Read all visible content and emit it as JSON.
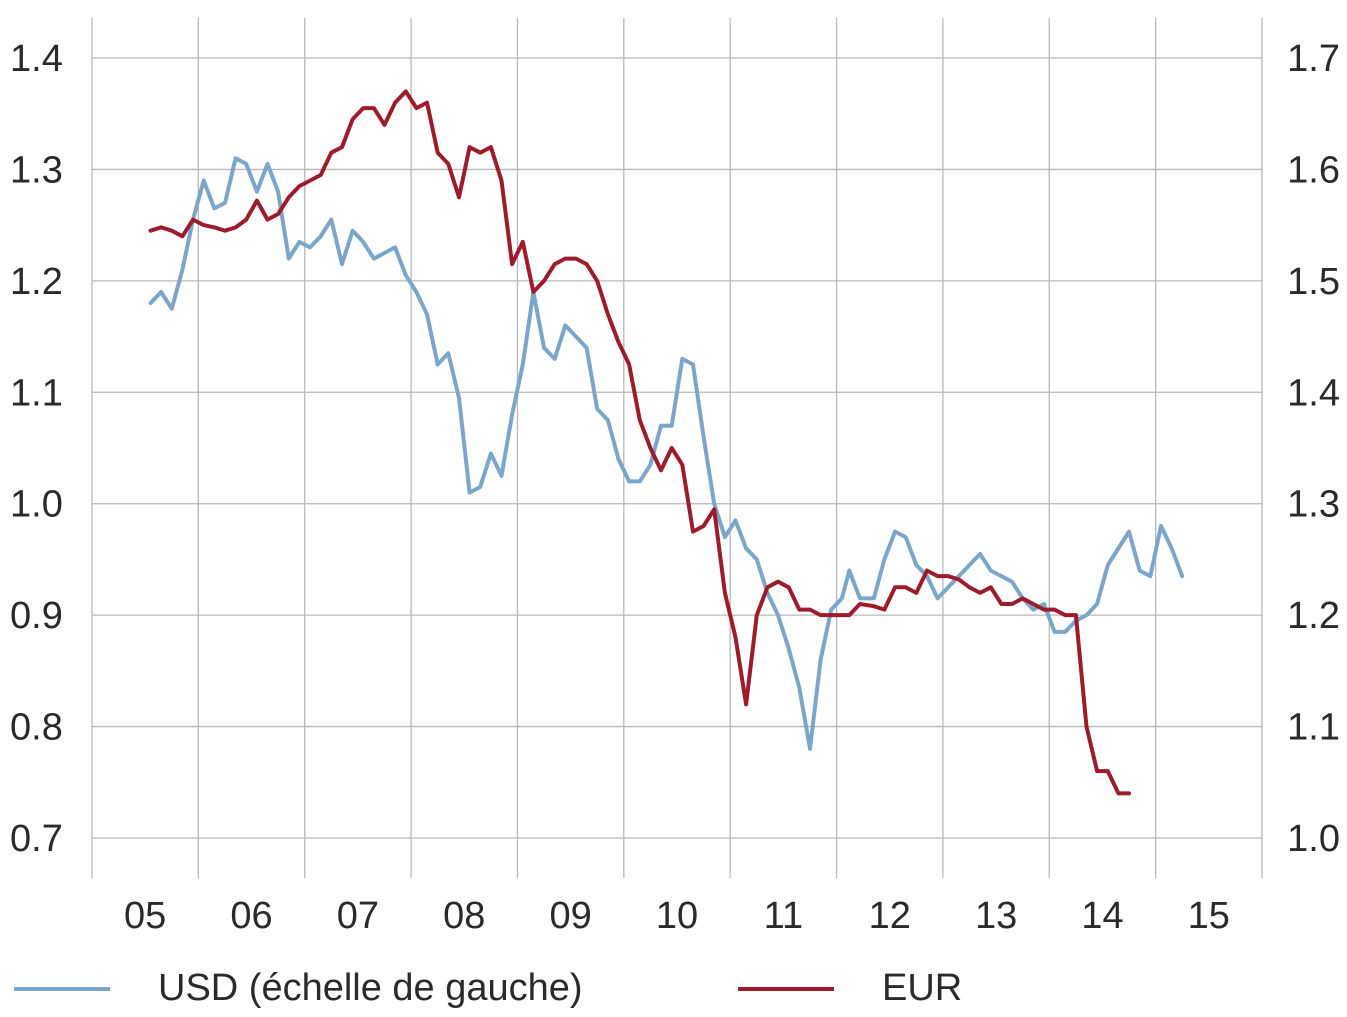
{
  "chart_data": {
    "type": "line",
    "x_tick_labels": [
      "05",
      "06",
      "07",
      "08",
      "09",
      "10",
      "11",
      "12",
      "13",
      "14",
      "15"
    ],
    "y_left": {
      "ticks": [
        "0.7",
        "0.8",
        "0.9",
        "1.0",
        "1.1",
        "1.2",
        "1.3",
        "1.4"
      ],
      "range": [
        0.7,
        1.4
      ]
    },
    "y_right": {
      "ticks": [
        "1.0",
        "1.1",
        "1.2",
        "1.3",
        "1.4",
        "1.5",
        "1.6",
        "1.7"
      ],
      "range": [
        1.0,
        1.7
      ]
    },
    "x_range": [
      2004.5,
      2015.5
    ],
    "grid": true,
    "legend_position": "bottom",
    "series": [
      {
        "name": "USD (échelle de gauche)",
        "axis": "left",
        "color": "#7ba6cb",
        "x": [
          2005.05,
          2005.15,
          2005.25,
          2005.35,
          2005.45,
          2005.55,
          2005.65,
          2005.75,
          2005.85,
          2005.95,
          2006.05,
          2006.15,
          2006.25,
          2006.35,
          2006.45,
          2006.55,
          2006.65,
          2006.75,
          2006.85,
          2006.95,
          2007.05,
          2007.15,
          2007.25,
          2007.35,
          2007.45,
          2007.55,
          2007.65,
          2007.75,
          2007.85,
          2007.95,
          2008.05,
          2008.15,
          2008.25,
          2008.35,
          2008.45,
          2008.55,
          2008.65,
          2008.75,
          2008.85,
          2008.95,
          2009.05,
          2009.15,
          2009.25,
          2009.35,
          2009.45,
          2009.55,
          2009.65,
          2009.75,
          2009.85,
          2009.95,
          2010.05,
          2010.15,
          2010.25,
          2010.35,
          2010.45,
          2010.55,
          2010.65,
          2010.75,
          2010.85,
          2010.95,
          2011.05,
          2011.15,
          2011.25,
          2011.35,
          2011.45,
          2011.55,
          2011.62,
          2011.72,
          2011.85,
          2011.95,
          2012.05,
          2012.15,
          2012.25,
          2012.35,
          2012.45,
          2012.55,
          2012.65,
          2012.75,
          2012.85,
          2012.95,
          2013.05,
          2013.15,
          2013.25,
          2013.35,
          2013.45,
          2013.55,
          2013.65,
          2013.75,
          2013.85,
          2013.95,
          2014.05,
          2014.15,
          2014.25,
          2014.35,
          2014.45,
          2014.55,
          2014.65,
          2014.75,
          2014.85,
          2014.95,
          2015.05,
          2015.15,
          2015.25
        ],
        "y": [
          1.18,
          1.19,
          1.175,
          1.21,
          1.255,
          1.29,
          1.265,
          1.27,
          1.31,
          1.305,
          1.28,
          1.305,
          1.28,
          1.22,
          1.235,
          1.23,
          1.24,
          1.255,
          1.215,
          1.245,
          1.235,
          1.22,
          1.225,
          1.23,
          1.205,
          1.19,
          1.17,
          1.125,
          1.135,
          1.095,
          1.01,
          1.015,
          1.045,
          1.025,
          1.08,
          1.125,
          1.19,
          1.14,
          1.13,
          1.16,
          1.15,
          1.14,
          1.085,
          1.075,
          1.04,
          1.02,
          1.02,
          1.035,
          1.07,
          1.07,
          1.13,
          1.125,
          1.06,
          1.0,
          0.97,
          0.985,
          0.96,
          0.95,
          0.92,
          0.9,
          0.87,
          0.835,
          0.78,
          0.86,
          0.905,
          0.915,
          0.94,
          0.915,
          0.915,
          0.95,
          0.975,
          0.97,
          0.945,
          0.935,
          0.915,
          0.925,
          0.935,
          0.945,
          0.955,
          0.94,
          0.935,
          0.93,
          0.915,
          0.905,
          0.91,
          0.885,
          0.885,
          0.895,
          0.9,
          0.91,
          0.945,
          0.96,
          0.975,
          0.94,
          0.935,
          0.98,
          0.96,
          0.935,
          null,
          null,
          null,
          null,
          null
        ]
      },
      {
        "name": "EUR",
        "axis": "right",
        "color": "#9c1c2b",
        "x": [
          2005.05,
          2005.15,
          2005.25,
          2005.35,
          2005.45,
          2005.55,
          2005.65,
          2005.75,
          2005.85,
          2005.95,
          2006.05,
          2006.15,
          2006.25,
          2006.35,
          2006.45,
          2006.55,
          2006.65,
          2006.75,
          2006.85,
          2006.95,
          2007.05,
          2007.15,
          2007.25,
          2007.35,
          2007.45,
          2007.55,
          2007.65,
          2007.75,
          2007.85,
          2007.95,
          2008.05,
          2008.15,
          2008.25,
          2008.35,
          2008.45,
          2008.55,
          2008.65,
          2008.75,
          2008.85,
          2008.95,
          2009.05,
          2009.15,
          2009.25,
          2009.35,
          2009.45,
          2009.55,
          2009.65,
          2009.75,
          2009.85,
          2009.95,
          2010.05,
          2010.15,
          2010.25,
          2010.35,
          2010.45,
          2010.55,
          2010.65,
          2010.75,
          2010.85,
          2010.95,
          2011.05,
          2011.15,
          2011.25,
          2011.35,
          2011.45,
          2011.55,
          2011.62,
          2011.72,
          2011.85,
          2011.95,
          2012.05,
          2012.15,
          2012.25,
          2012.35,
          2012.45,
          2012.55,
          2012.65,
          2012.75,
          2012.85,
          2012.95,
          2013.05,
          2013.15,
          2013.25,
          2013.35,
          2013.45,
          2013.55,
          2013.65,
          2013.75,
          2013.85,
          2013.95,
          2014.05,
          2014.15,
          2014.25,
          2014.35,
          2014.45,
          2014.55,
          2014.65,
          2014.75,
          2014.85,
          2014.95,
          2015.05,
          2015.15,
          2015.25
        ],
        "y": [
          1.545,
          1.548,
          1.545,
          1.54,
          1.555,
          1.55,
          1.548,
          1.545,
          1.548,
          1.555,
          1.572,
          1.555,
          1.56,
          1.575,
          1.585,
          1.59,
          1.595,
          1.615,
          1.62,
          1.645,
          1.655,
          1.655,
          1.64,
          1.66,
          1.67,
          1.655,
          1.66,
          1.615,
          1.605,
          1.575,
          1.62,
          1.615,
          1.62,
          1.59,
          1.515,
          1.535,
          1.49,
          1.5,
          1.515,
          1.52,
          1.52,
          1.515,
          1.5,
          1.47,
          1.445,
          1.425,
          1.375,
          1.35,
          1.33,
          1.35,
          1.335,
          1.275,
          1.28,
          1.295,
          1.22,
          1.18,
          1.12,
          1.2,
          1.225,
          1.23,
          1.225,
          1.205,
          1.205,
          1.2,
          1.2,
          1.2,
          1.2,
          1.21,
          1.208,
          1.205,
          1.225,
          1.225,
          1.22,
          1.24,
          1.235,
          1.235,
          1.232,
          1.225,
          1.22,
          1.225,
          1.21,
          1.21,
          1.215,
          1.21,
          1.205,
          1.205,
          1.2,
          1.2,
          1.1,
          1.06,
          1.06,
          1.04,
          1.04,
          null,
          null,
          null,
          null,
          null,
          null,
          null,
          null,
          null,
          null
        ]
      }
    ]
  },
  "legend": {
    "usd_label": "USD (échelle de gauche)",
    "eur_label": "EUR"
  }
}
